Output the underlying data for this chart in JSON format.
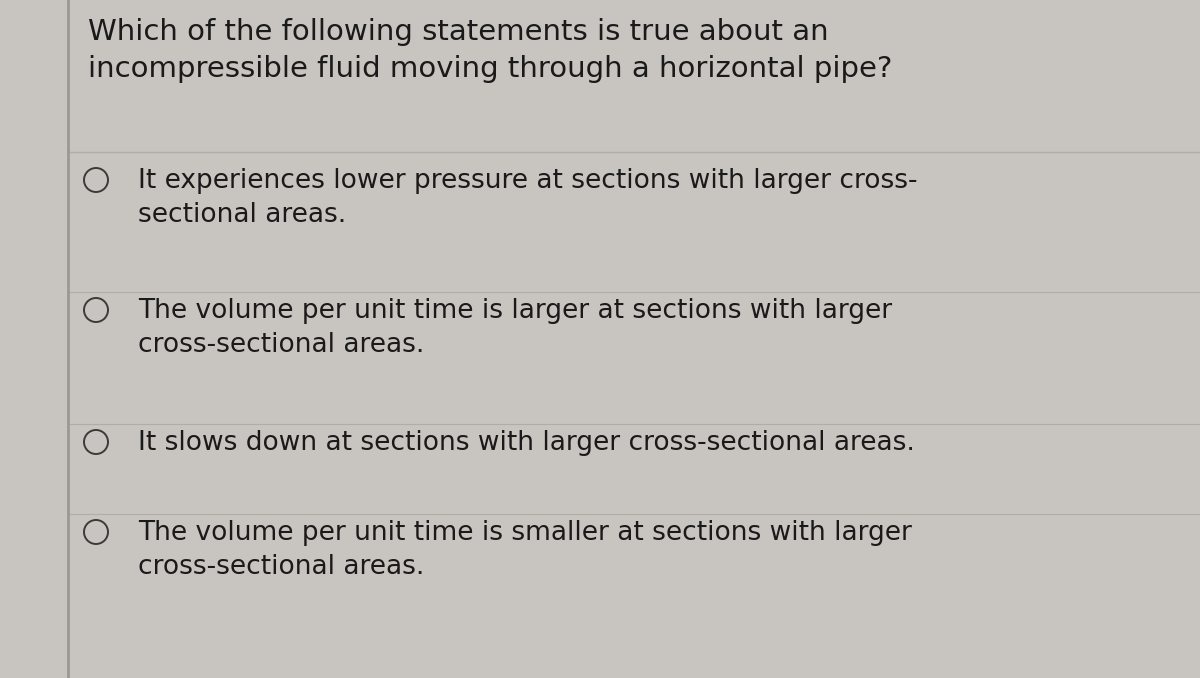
{
  "background_color": "#c8c5c0",
  "text_color": "#1a1a1a",
  "question": "Which of the following statements is true about an\nincompressible fluid moving through a horizontal pipe?",
  "options": [
    "It experiences lower pressure at sections with larger cross-\nsectional areas.",
    "The volume per unit time is larger at sections with larger\ncross-sectional areas.",
    "It slows down at sections with larger cross-sectional areas.",
    "The volume per unit time is smaller at sections with larger\ncross-sectional areas."
  ],
  "question_fontsize": 21,
  "option_fontsize": 19,
  "left_bar_color": "#9a9896",
  "divider_color": "#b0ada8",
  "circle_color": "#3a3a3a",
  "fig_width": 12.0,
  "fig_height": 6.78
}
